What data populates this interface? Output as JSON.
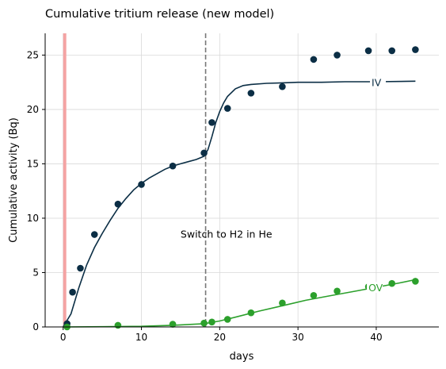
{
  "chart_data": {
    "type": "scatter",
    "title": "Cumulative tritium release (new model)",
    "xlabel": "days",
    "ylabel": "Cumulative activity (Bq)",
    "xlim": [
      -2.3,
      48
    ],
    "ylim": [
      0,
      27
    ],
    "xticks": [
      0,
      10,
      20,
      30,
      40
    ],
    "yticks": [
      0,
      5,
      10,
      15,
      20,
      25
    ],
    "grid": true,
    "annotations": [
      {
        "text": "Switch to H2 in He",
        "x": 15,
        "y": 8.2
      }
    ],
    "vertical_lines": [
      {
        "x": 18.2,
        "style": "dashed",
        "color": "#777777"
      }
    ],
    "shaded_spans": [
      {
        "x0": 0,
        "x1": 0.4,
        "color": "#f4a3a3"
      }
    ],
    "series": [
      {
        "name": "IV",
        "color": "#0b2e45",
        "points": {
          "x": [
            0.5,
            1.2,
            2.2,
            4.0,
            7.0,
            10.0,
            14.0,
            18.0,
            19.0,
            21.0,
            24.0,
            28.0,
            32.0,
            35.0,
            39.0,
            42.0,
            45.0
          ],
          "y": [
            0.3,
            3.2,
            5.4,
            8.5,
            11.3,
            13.1,
            14.8,
            16.0,
            18.8,
            20.1,
            21.5,
            22.1,
            24.6,
            25.0,
            25.4,
            25.4,
            25.5
          ]
        },
        "fit": {
          "x": [
            0,
            1,
            2,
            3,
            4,
            5,
            6,
            7,
            8,
            9,
            10,
            11,
            12,
            13,
            14,
            15,
            16,
            17,
            18,
            18.5,
            19,
            19.5,
            20,
            20.5,
            21,
            22,
            23,
            24,
            26,
            28,
            30,
            33,
            36,
            40,
            45
          ],
          "y": [
            0,
            1.2,
            3.6,
            5.7,
            7.3,
            8.6,
            9.8,
            10.9,
            11.8,
            12.6,
            13.2,
            13.7,
            14.1,
            14.5,
            14.8,
            15.0,
            15.2,
            15.4,
            15.7,
            16.3,
            17.5,
            18.8,
            19.8,
            20.6,
            21.2,
            21.9,
            22.2,
            22.3,
            22.4,
            22.45,
            22.5,
            22.5,
            22.55,
            22.55,
            22.6
          ]
        },
        "label": {
          "text": "IV",
          "x": 39.4,
          "y": 22.5
        }
      },
      {
        "name": "OV",
        "color": "#2ca02c",
        "points": {
          "x": [
            0.5,
            7.0,
            14.0,
            18.0,
            19.0,
            21.0,
            24.0,
            28.0,
            32.0,
            35.0,
            39.0,
            42.0,
            45.0
          ],
          "y": [
            0.0,
            0.15,
            0.25,
            0.35,
            0.45,
            0.7,
            1.3,
            2.2,
            2.9,
            3.3,
            3.7,
            4.0,
            4.2
          ]
        },
        "fit": {
          "x": [
            0,
            5,
            10,
            14,
            18,
            20,
            22,
            25,
            28,
            31,
            34,
            37,
            40,
            43,
            45
          ],
          "y": [
            0,
            0.02,
            0.06,
            0.15,
            0.3,
            0.55,
            0.9,
            1.45,
            1.95,
            2.45,
            2.85,
            3.25,
            3.65,
            4.05,
            4.35
          ]
        },
        "label": {
          "text": "OV",
          "x": 39.0,
          "y": 3.65
        }
      }
    ]
  }
}
